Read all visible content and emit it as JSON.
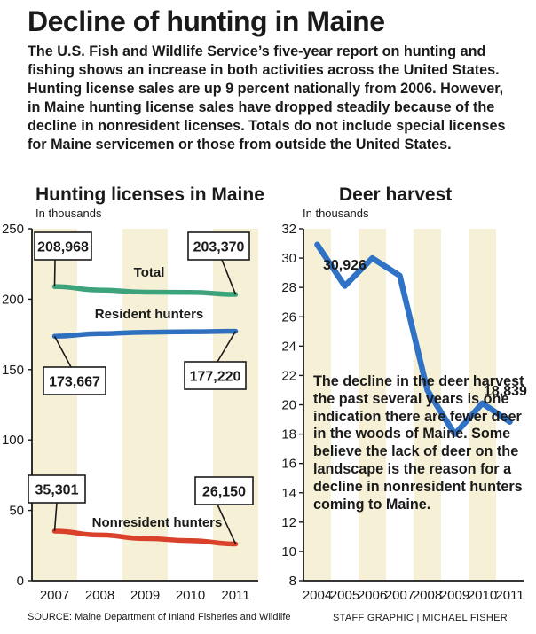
{
  "headline": "Decline of hunting in Maine",
  "intro": "The U.S. Fish and Wildlife Service’s five-year report on hunting and fishing shows an increase in both activities across the United States. Hunting license sales are up 9 percent nationally from 2006. However, in Maine hunting license sales have dropped steadily because of the decline in nonresident licenses. Totals do not include special licenses for Maine servicemen or those from outside the United States.",
  "source": "SOURCE: Maine Department of Inland Fisheries and Wildlife",
  "credit": "STAFF GRAPHIC | MICHAEL FISHER",
  "colors": {
    "band": "#f6f0d6",
    "total": "#3da37d",
    "resident": "#2f6fbf",
    "nonresident": "#d9412b",
    "deer": "#2f72c6"
  },
  "chart_data": [
    {
      "type": "line",
      "title": "Hunting licenses in Maine",
      "ylabel": "In thousands",
      "categories": [
        "2007",
        "2008",
        "2009",
        "2010",
        "2011"
      ],
      "ylim": [
        0,
        250
      ],
      "yticks": [
        "250",
        "200",
        "150",
        "100",
        "50",
        "0"
      ],
      "grid": false,
      "series": [
        {
          "name": "Total",
          "values": [
            208.968,
            206.5,
            205.0,
            204.8,
            203.37
          ],
          "color_key": "total",
          "callouts": [
            "208,968",
            "203,370"
          ]
        },
        {
          "name": "Resident hunters",
          "values": [
            173.667,
            175.5,
            176.5,
            176.9,
            177.22
          ],
          "color_key": "resident",
          "callouts": [
            "173,667",
            "177,220"
          ]
        },
        {
          "name": "Nonresident hunters",
          "values": [
            35.301,
            32.5,
            30.0,
            28.5,
            26.15
          ],
          "color_key": "nonresident",
          "callouts": [
            "35,301",
            "26,150"
          ]
        }
      ]
    },
    {
      "type": "line",
      "title": "Deer harvest",
      "ylabel": "In thousands",
      "categories": [
        "2004",
        "2005",
        "2006",
        "2007",
        "2008",
        "2009",
        "2010",
        "2011"
      ],
      "ylim": [
        8,
        32
      ],
      "yticks": [
        "32",
        "30",
        "28",
        "26",
        "24",
        "22",
        "20",
        "18",
        "16",
        "14",
        "12",
        "10",
        "8"
      ],
      "grid": false,
      "series": [
        {
          "values": [
            30.926,
            28.1,
            30.0,
            28.8,
            21.0,
            18.0,
            20.1,
            18.839
          ],
          "color_key": "deer",
          "callouts": [
            "30,926",
            "18,839"
          ]
        }
      ],
      "annotation": "The decline in the deer harvest the past several years is one indication there are fewer deer in the woods of Maine. Some believe the lack of deer on the landscape is the reason for a decline in nonresident hunters coming to Maine."
    }
  ]
}
